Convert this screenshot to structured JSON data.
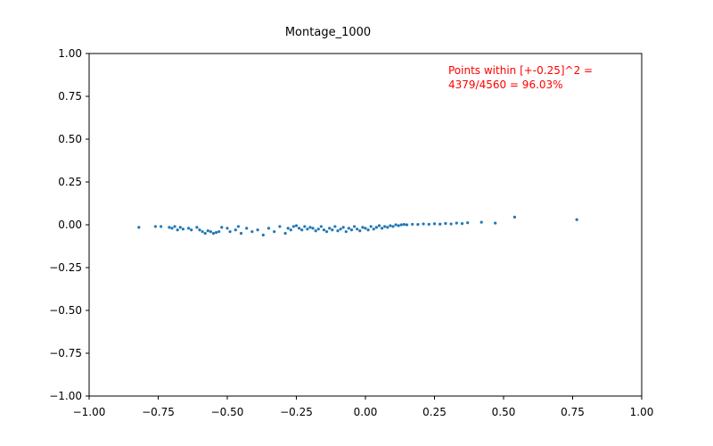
{
  "chart_data": {
    "type": "scatter",
    "title": "Montage_1000",
    "xlabel": "",
    "ylabel": "",
    "xlim": [
      -1.0,
      1.0
    ],
    "ylim": [
      -1.0,
      1.0
    ],
    "xticks": [
      "−1.00",
      "−0.75",
      "−0.50",
      "−0.25",
      "0.00",
      "0.25",
      "0.50",
      "0.75",
      "1.00"
    ],
    "yticks": [
      "−1.00",
      "−0.75",
      "−0.50",
      "−0.25",
      "0.00",
      "0.25",
      "0.50",
      "0.75",
      "1.00"
    ],
    "grid": false,
    "annotation": {
      "lines": [
        "Points within [+-0.25]^2 =",
        "4379/4560 = 96.03%"
      ],
      "color": "#ff0000"
    },
    "series": [
      {
        "color": "#1f77b4",
        "points": [
          [
            -0.82,
            -0.015
          ],
          [
            -0.76,
            -0.01
          ],
          [
            -0.74,
            -0.01
          ],
          [
            -0.71,
            -0.015
          ],
          [
            -0.7,
            -0.02
          ],
          [
            -0.69,
            -0.01
          ],
          [
            -0.68,
            -0.03
          ],
          [
            -0.67,
            -0.015
          ],
          [
            -0.66,
            -0.025
          ],
          [
            -0.64,
            -0.02
          ],
          [
            -0.63,
            -0.03
          ],
          [
            -0.61,
            -0.015
          ],
          [
            -0.6,
            -0.03
          ],
          [
            -0.59,
            -0.04
          ],
          [
            -0.58,
            -0.05
          ],
          [
            -0.57,
            -0.035
          ],
          [
            -0.56,
            -0.04
          ],
          [
            -0.55,
            -0.05
          ],
          [
            -0.54,
            -0.045
          ],
          [
            -0.53,
            -0.04
          ],
          [
            -0.52,
            -0.015
          ],
          [
            -0.5,
            -0.02
          ],
          [
            -0.49,
            -0.04
          ],
          [
            -0.47,
            -0.03
          ],
          [
            -0.46,
            -0.01
          ],
          [
            -0.45,
            -0.05
          ],
          [
            -0.43,
            -0.02
          ],
          [
            -0.41,
            -0.04
          ],
          [
            -0.39,
            -0.03
          ],
          [
            -0.37,
            -0.06
          ],
          [
            -0.35,
            -0.02
          ],
          [
            -0.33,
            -0.04
          ],
          [
            -0.31,
            -0.01
          ],
          [
            -0.29,
            -0.05
          ],
          [
            -0.28,
            -0.02
          ],
          [
            -0.27,
            -0.03
          ],
          [
            -0.26,
            -0.01
          ],
          [
            -0.25,
            -0.005
          ],
          [
            -0.24,
            -0.02
          ],
          [
            -0.23,
            -0.03
          ],
          [
            -0.22,
            -0.01
          ],
          [
            -0.21,
            -0.025
          ],
          [
            -0.2,
            -0.015
          ],
          [
            -0.19,
            -0.02
          ],
          [
            -0.18,
            -0.035
          ],
          [
            -0.17,
            -0.025
          ],
          [
            -0.16,
            -0.01
          ],
          [
            -0.15,
            -0.03
          ],
          [
            -0.14,
            -0.04
          ],
          [
            -0.13,
            -0.02
          ],
          [
            -0.12,
            -0.03
          ],
          [
            -0.11,
            -0.01
          ],
          [
            -0.1,
            -0.035
          ],
          [
            -0.09,
            -0.025
          ],
          [
            -0.08,
            -0.015
          ],
          [
            -0.07,
            -0.04
          ],
          [
            -0.06,
            -0.02
          ],
          [
            -0.05,
            -0.03
          ],
          [
            -0.04,
            -0.01
          ],
          [
            -0.03,
            -0.025
          ],
          [
            -0.02,
            -0.035
          ],
          [
            -0.01,
            -0.015
          ],
          [
            0.0,
            -0.02
          ],
          [
            0.01,
            -0.03
          ],
          [
            0.02,
            -0.01
          ],
          [
            0.03,
            -0.025
          ],
          [
            0.04,
            -0.015
          ],
          [
            0.05,
            -0.005
          ],
          [
            0.06,
            -0.02
          ],
          [
            0.07,
            -0.01
          ],
          [
            0.08,
            -0.015
          ],
          [
            0.09,
            -0.005
          ],
          [
            0.1,
            -0.01
          ],
          [
            0.11,
            0.0
          ],
          [
            0.12,
            -0.005
          ],
          [
            0.13,
            0.0
          ],
          [
            0.14,
            0.002
          ],
          [
            0.15,
            0.0
          ],
          [
            0.17,
            0.003
          ],
          [
            0.19,
            0.002
          ],
          [
            0.21,
            0.005
          ],
          [
            0.23,
            0.003
          ],
          [
            0.25,
            0.006
          ],
          [
            0.27,
            0.004
          ],
          [
            0.29,
            0.008
          ],
          [
            0.31,
            0.005
          ],
          [
            0.33,
            0.01
          ],
          [
            0.35,
            0.007
          ],
          [
            0.37,
            0.012
          ],
          [
            0.42,
            0.015
          ],
          [
            0.47,
            0.01
          ],
          [
            0.54,
            0.045
          ],
          [
            0.765,
            0.03
          ]
        ]
      }
    ]
  }
}
